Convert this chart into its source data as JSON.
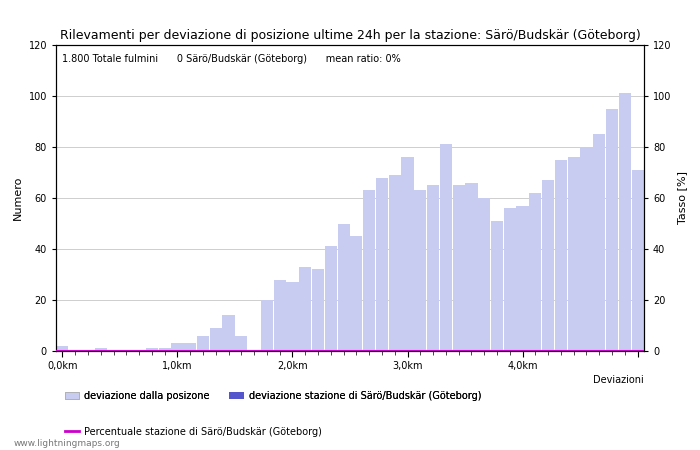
{
  "title": "Rilevamenti per deviazione di posizione ultime 24h per la stazione: Särö/Budskär (Göteborg)",
  "subtitle": "1.800 Totale fulmini      0 Särö/Budskär (Göteborg)      mean ratio: 0%",
  "ylabel_left": "Numero",
  "ylabel_right": "Tasso [%]",
  "xlabel": "Deviazioni",
  "watermark": "www.lightningmaps.org",
  "ylim": [
    0,
    120
  ],
  "xtick_positions": [
    0,
    9,
    18,
    27,
    36,
    45
  ],
  "xtick_labels": [
    "0,0km",
    "1,0km",
    "2,0km",
    "3,0km",
    "4,0km",
    ""
  ],
  "ytick_values": [
    0,
    20,
    40,
    60,
    80,
    100,
    120
  ],
  "bar_color_light": "#c8ccf0",
  "bar_color_dark": "#5555cc",
  "line_color": "#cc00cc",
  "background_color": "#ffffff",
  "grid_color": "#bbbbbb",
  "bar_values": [
    2,
    0,
    0,
    1,
    0,
    0,
    0,
    1,
    1,
    3,
    3,
    6,
    9,
    14,
    6,
    0,
    20,
    28,
    27,
    33,
    32,
    41,
    50,
    45,
    63,
    68,
    69,
    76,
    63,
    65,
    81,
    65,
    66,
    60,
    51,
    56,
    57,
    62,
    67,
    75,
    76,
    80,
    85,
    95,
    101,
    71
  ],
  "station_bar_values": [
    0,
    0,
    0,
    0,
    0,
    0,
    0,
    0,
    0,
    0,
    0,
    0,
    0,
    0,
    0,
    0,
    0,
    0,
    0,
    0,
    0,
    0,
    0,
    0,
    0,
    0,
    0,
    0,
    0,
    0,
    0,
    0,
    0,
    0,
    0,
    0,
    0,
    0,
    0,
    0,
    0,
    0,
    0,
    0,
    0,
    0
  ],
  "legend_row1": [
    {
      "label": "deviazione dalla posizone",
      "color": "#c8ccf0",
      "type": "bar"
    },
    {
      "label": "deviazione stazione di Särö/Budskär (Göteborg)",
      "color": "#5555cc",
      "type": "bar"
    }
  ],
  "legend_row2": [
    {
      "label": "Percentuale stazione di Särö/Budskär (Göteborg)",
      "color": "#cc00cc",
      "type": "line"
    }
  ]
}
